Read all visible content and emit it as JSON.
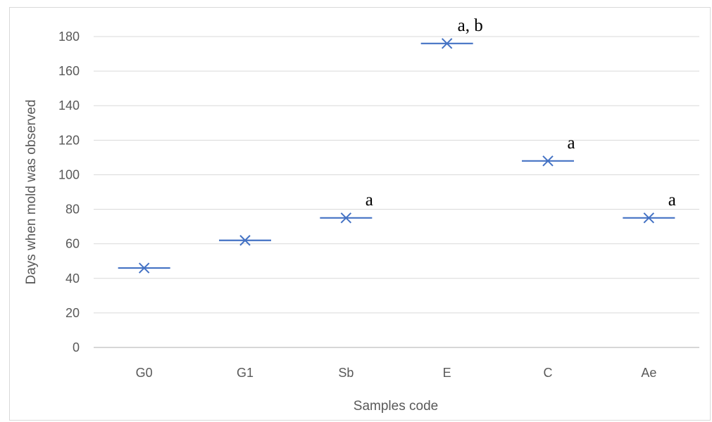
{
  "chart_data": {
    "type": "scatter",
    "title": "",
    "xlabel": "Samples code",
    "ylabel": "Days when mold was observed",
    "categories": [
      "G0",
      "G1",
      "Sb",
      "E",
      "C",
      "Ae"
    ],
    "values": [
      46,
      62,
      75,
      176,
      108,
      75
    ],
    "annotations": [
      "",
      "",
      "a",
      "a, b",
      "a",
      "a"
    ],
    "ylim": [
      0,
      180
    ],
    "yticks": [
      0,
      20,
      40,
      60,
      80,
      100,
      120,
      140,
      160,
      180
    ],
    "grid": true,
    "legend": "none",
    "marker": "x-with-horizontal-bar",
    "series_color": "#4472c4",
    "grid_color": "#d9d9d9"
  }
}
